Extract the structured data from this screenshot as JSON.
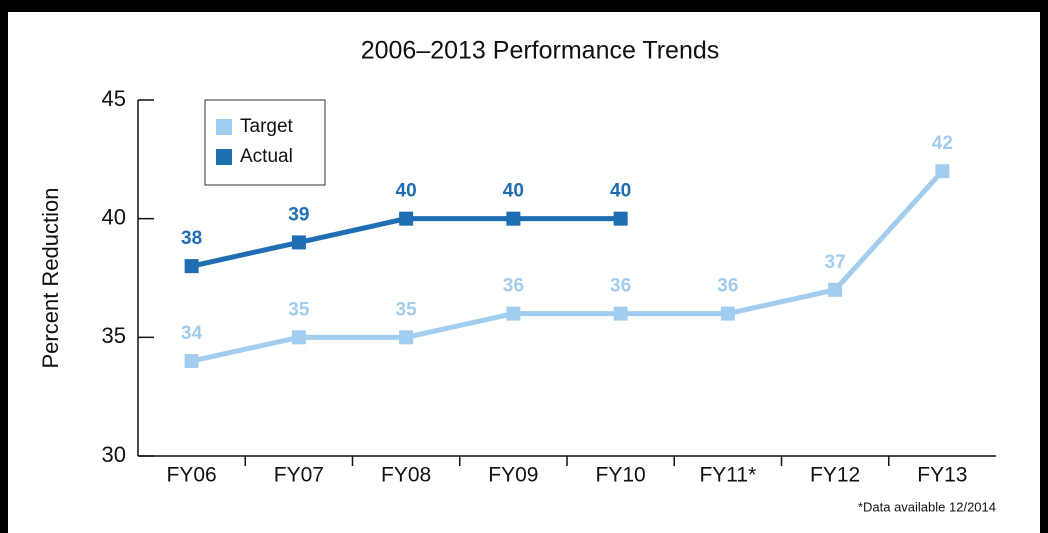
{
  "chart_data": {
    "type": "line",
    "title": "2006–2013 Performance Trends",
    "y_label": "Percent Reduction",
    "note": "*Data available 12/2014",
    "categories": [
      "FY06",
      "FY07",
      "FY08",
      "FY09",
      "FY10",
      "FY11*",
      "FY12",
      "FY13"
    ],
    "series": [
      {
        "name": "Target",
        "color": "#a3cdef",
        "values": [
          34,
          35,
          35,
          36,
          36,
          36,
          37,
          42
        ]
      },
      {
        "name": "Actual",
        "color": "#1f6db3",
        "values": [
          38,
          39,
          40,
          40,
          40,
          null,
          null,
          null
        ]
      }
    ],
    "ylim": [
      30,
      45
    ],
    "yticks": [
      30,
      35,
      40,
      45
    ],
    "legend": "upper left",
    "grid": false
  }
}
